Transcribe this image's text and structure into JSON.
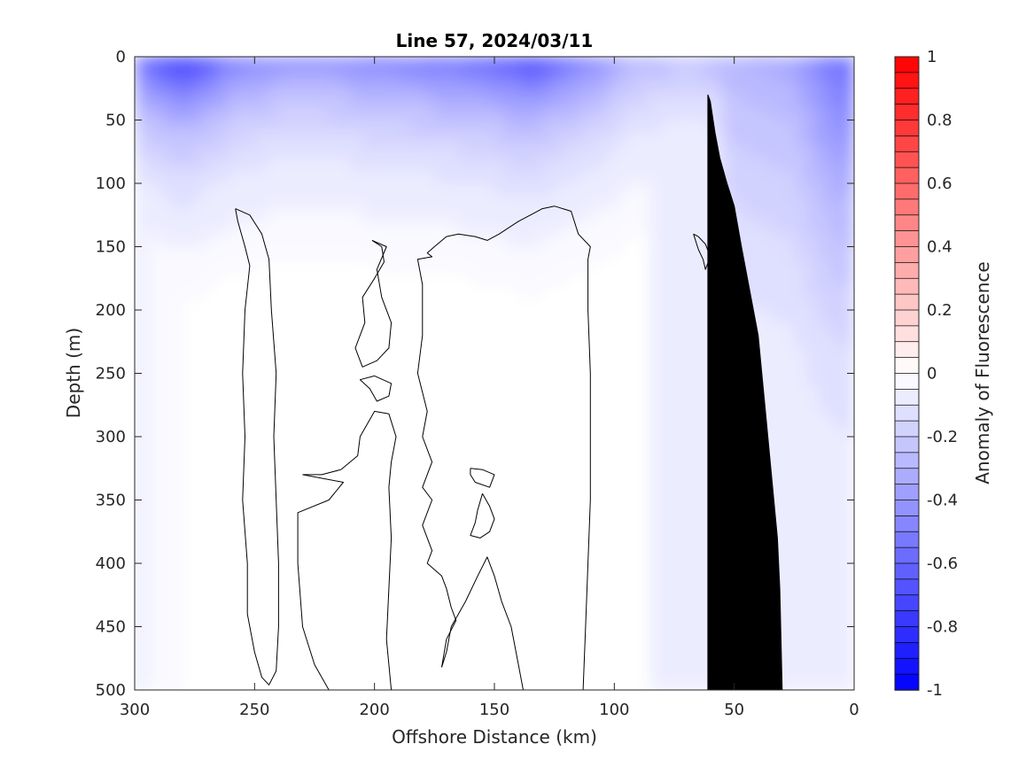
{
  "chart_data": {
    "type": "heatmap",
    "title": "Line 57, 2024/03/11",
    "xlabel": "Offshore Distance (km)",
    "ylabel": "Depth (m)",
    "colorbar_label": "Anomaly of Fluorescence",
    "xlim": [
      300,
      0
    ],
    "ylim": [
      0,
      500
    ],
    "x_reversed": true,
    "y_reversed": true,
    "x_ticks": [
      300,
      250,
      200,
      150,
      100,
      50,
      0
    ],
    "y_ticks": [
      0,
      50,
      100,
      150,
      200,
      250,
      300,
      350,
      400,
      450,
      500
    ],
    "colorbar_range": [
      -1,
      1
    ],
    "colorbar_ticks": [
      1,
      0.8,
      0.6,
      0.4,
      0.2,
      0,
      -0.2,
      -0.4,
      -0.6,
      -0.8,
      -1
    ],
    "colorbar_levels": 40,
    "colormap": {
      "negative": "#0000ff",
      "zero": "#ffffff",
      "positive": "#ff0000"
    },
    "grid": false,
    "surface_anomaly": [
      {
        "x": 300,
        "value": -0.55
      },
      {
        "x": 280,
        "value": -0.85
      },
      {
        "x": 260,
        "value": -0.55
      },
      {
        "x": 240,
        "value": -0.45
      },
      {
        "x": 220,
        "value": -0.45
      },
      {
        "x": 200,
        "value": -0.5
      },
      {
        "x": 180,
        "value": -0.55
      },
      {
        "x": 160,
        "value": -0.6
      },
      {
        "x": 135,
        "value": -0.75
      },
      {
        "x": 110,
        "value": -0.5
      },
      {
        "x": 90,
        "value": -0.3
      },
      {
        "x": 70,
        "value": -0.25
      },
      {
        "x": 50,
        "value": -0.3
      },
      {
        "x": 25,
        "value": -0.35
      },
      {
        "x": 10,
        "value": -0.55
      },
      {
        "x": 0,
        "value": -0.6
      }
    ],
    "zero_contours": [
      [
        [
          258,
          120
        ],
        [
          252,
          125
        ],
        [
          247,
          140
        ],
        [
          244,
          160
        ],
        [
          243,
          200
        ],
        [
          241,
          250
        ],
        [
          242,
          300
        ],
        [
          241,
          350
        ],
        [
          240,
          400
        ],
        [
          240,
          450
        ],
        [
          241,
          485
        ],
        [
          244,
          496
        ],
        [
          247,
          490
        ],
        [
          250,
          470
        ],
        [
          253,
          440
        ],
        [
          253,
          400
        ],
        [
          255,
          350
        ],
        [
          254,
          300
        ],
        [
          255,
          250
        ],
        [
          254,
          200
        ],
        [
          252,
          165
        ],
        [
          254,
          150
        ],
        [
          257,
          130
        ],
        [
          258,
          120
        ]
      ],
      [
        [
          201,
          145
        ],
        [
          197,
          150
        ],
        [
          196,
          162
        ],
        [
          200,
          175
        ],
        [
          205,
          190
        ],
        [
          204,
          210
        ],
        [
          208,
          230
        ],
        [
          205,
          245
        ],
        [
          199,
          240
        ],
        [
          194,
          230
        ],
        [
          193,
          210
        ],
        [
          197,
          190
        ],
        [
          199,
          168
        ],
        [
          195,
          150
        ],
        [
          201,
          145
        ]
      ],
      [
        [
          200,
          252
        ],
        [
          206,
          255
        ],
        [
          202,
          262
        ],
        [
          199,
          272
        ],
        [
          194,
          268
        ],
        [
          193,
          258
        ],
        [
          200,
          252
        ]
      ],
      [
        [
          230,
          330
        ],
        [
          222,
          330
        ],
        [
          214,
          326
        ],
        [
          207,
          315
        ],
        [
          206,
          300
        ],
        [
          200,
          280
        ],
        [
          194,
          282
        ],
        [
          191,
          300
        ],
        [
          193,
          320
        ],
        [
          194,
          340
        ],
        [
          193,
          380
        ],
        [
          194,
          420
        ],
        [
          195,
          460
        ],
        [
          193,
          500
        ]
      ],
      [
        [
          219,
          500
        ],
        [
          225,
          480
        ],
        [
          230,
          450
        ],
        [
          232,
          400
        ],
        [
          232,
          360
        ],
        [
          219,
          350
        ],
        [
          213,
          336
        ],
        [
          230,
          330
        ]
      ],
      [
        [
          172,
          482
        ],
        [
          170,
          470
        ],
        [
          168,
          450
        ],
        [
          165,
          440
        ],
        [
          162,
          430
        ],
        [
          157,
          410
        ],
        [
          153,
          395
        ],
        [
          150,
          410
        ],
        [
          147,
          430
        ],
        [
          143,
          450
        ],
        [
          140,
          480
        ],
        [
          138,
          500
        ]
      ],
      [
        [
          113,
          500
        ],
        [
          112,
          450
        ],
        [
          111,
          400
        ],
        [
          110,
          350
        ],
        [
          110,
          300
        ],
        [
          110,
          250
        ],
        [
          111,
          200
        ],
        [
          111,
          160
        ],
        [
          110,
          150
        ],
        [
          115,
          140
        ],
        [
          118,
          122
        ],
        [
          125,
          118
        ],
        [
          130,
          120
        ],
        [
          135,
          125
        ],
        [
          140,
          130
        ],
        [
          148,
          140
        ],
        [
          153,
          145
        ],
        [
          158,
          142
        ],
        [
          165,
          140
        ],
        [
          170,
          142
        ],
        [
          175,
          150
        ],
        [
          178,
          155
        ],
        [
          176,
          158
        ],
        [
          182,
          160
        ],
        [
          180,
          180
        ],
        [
          180,
          220
        ],
        [
          182,
          250
        ],
        [
          178,
          280
        ],
        [
          180,
          300
        ],
        [
          176,
          320
        ],
        [
          180,
          340
        ],
        [
          176,
          350
        ],
        [
          180,
          370
        ],
        [
          176,
          390
        ],
        [
          178,
          400
        ],
        [
          172,
          410
        ],
        [
          170,
          420
        ],
        [
          168,
          435
        ],
        [
          166,
          445
        ],
        [
          170,
          460
        ],
        [
          172,
          482
        ]
      ],
      [
        [
          160,
          325
        ],
        [
          155,
          326
        ],
        [
          150,
          330
        ],
        [
          152,
          340
        ],
        [
          158,
          336
        ],
        [
          160,
          330
        ],
        [
          160,
          325
        ]
      ],
      [
        [
          155,
          345
        ],
        [
          152,
          355
        ],
        [
          150,
          365
        ],
        [
          152,
          375
        ],
        [
          156,
          380
        ],
        [
          160,
          378
        ],
        [
          158,
          368
        ],
        [
          157,
          358
        ],
        [
          155,
          345
        ]
      ],
      [
        [
          67,
          140
        ],
        [
          65,
          152
        ],
        [
          63,
          160
        ],
        [
          62,
          168
        ],
        [
          60,
          158
        ],
        [
          62,
          148
        ],
        [
          65,
          142
        ],
        [
          67,
          140
        ]
      ]
    ],
    "seafloor": [
      [
        30,
        500
      ],
      [
        31,
        420
      ],
      [
        32,
        380
      ],
      [
        34,
        340
      ],
      [
        37,
        280
      ],
      [
        40,
        220
      ],
      [
        43,
        190
      ],
      [
        47,
        150
      ],
      [
        50,
        118
      ],
      [
        53,
        100
      ],
      [
        56,
        80
      ],
      [
        58,
        60
      ],
      [
        60,
        35
      ],
      [
        61,
        30
      ],
      [
        61,
        500
      ]
    ],
    "notes": ""
  }
}
